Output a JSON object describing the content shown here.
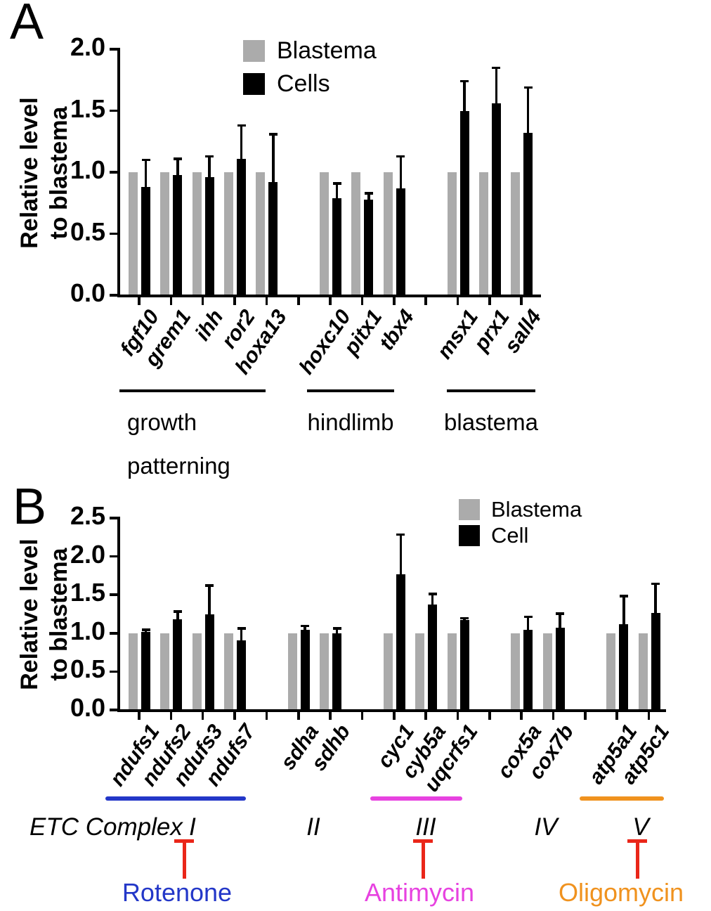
{
  "figure": {
    "background": "#ffffff",
    "bar_colors": {
      "blastema": "#ababab",
      "cells": "#000000"
    },
    "accent_colors": {
      "complex1_blue": "#2337c8",
      "complex3_magenta": "#e742e0",
      "complex5_orange": "#f0921e",
      "inhibition_red": "#ea2619"
    }
  },
  "chart_data": [
    {
      "type": "bar",
      "panel_label": "A",
      "ylabel": [
        "Relative level",
        "to blastema"
      ],
      "ylim": [
        0.0,
        2.0
      ],
      "ytick_labels": [
        "0.0",
        "0.5",
        "1.0",
        "1.5",
        "2.0"
      ],
      "grid": false,
      "legend_position": "top-center",
      "legend": [
        {
          "name": "Blastema",
          "color": "#ababab"
        },
        {
          "name": "Cells",
          "color": "#000000"
        }
      ],
      "categories": [
        "fgf10",
        "grem1",
        "ihh",
        "ror2",
        "hoxa13",
        "hoxc10",
        "pitx1",
        "tbx4",
        "msx1",
        "prx1",
        "sall4"
      ],
      "series": [
        {
          "name": "Blastema",
          "color": "#ababab",
          "values": [
            1.0,
            1.0,
            1.0,
            1.0,
            1.0,
            1.0,
            1.0,
            1.0,
            1.0,
            1.0,
            1.0
          ],
          "errors": [
            0,
            0,
            0,
            0,
            0,
            0,
            0,
            0,
            0,
            0,
            0
          ]
        },
        {
          "name": "Cells",
          "color": "#000000",
          "values": [
            0.88,
            0.98,
            0.96,
            1.11,
            0.92,
            0.79,
            0.78,
            0.87,
            1.5,
            1.56,
            1.32
          ],
          "errors": [
            0.23,
            0.14,
            0.18,
            0.28,
            0.4,
            0.13,
            0.06,
            0.27,
            0.25,
            0.3,
            0.38
          ]
        }
      ],
      "groups": [
        {
          "label": "growth patterning",
          "categories": [
            "fgf10",
            "grem1",
            "ihh",
            "ror2",
            "hoxa13"
          ]
        },
        {
          "label": "hindlimb",
          "categories": [
            "hoxc10",
            "pitx1",
            "tbx4"
          ]
        },
        {
          "label": "blastema",
          "categories": [
            "msx1",
            "prx1",
            "sall4"
          ]
        }
      ]
    },
    {
      "type": "bar",
      "panel_label": "B",
      "ylabel": [
        "Relative level",
        "to blastema"
      ],
      "ylim": [
        0.0,
        2.5
      ],
      "ytick_labels": [
        "0.0",
        "0.5",
        "1.0",
        "1.5",
        "2.0",
        "2.5"
      ],
      "grid": false,
      "legend_position": "top-right",
      "legend": [
        {
          "name": "Blastema",
          "color": "#ababab"
        },
        {
          "name": "Cell",
          "color": "#000000"
        }
      ],
      "categories": [
        "ndufs1",
        "ndufs2",
        "ndufs3",
        "ndufs7",
        "sdha",
        "sdhb",
        "cyc1",
        "cyb5a",
        "uqcrfs1",
        "cox5a",
        "cox7b",
        "atp5a1",
        "atp5c1"
      ],
      "series": [
        {
          "name": "Blastema",
          "color": "#ababab",
          "values": [
            1.0,
            1.0,
            1.0,
            1.0,
            1.0,
            1.0,
            1.0,
            1.0,
            1.0,
            1.0,
            1.0,
            1.0,
            1.0
          ],
          "errors": [
            0,
            0,
            0,
            0,
            0,
            0,
            0,
            0,
            0,
            0,
            0,
            0,
            0
          ]
        },
        {
          "name": "Cell",
          "color": "#000000",
          "values": [
            1.02,
            1.18,
            1.25,
            0.91,
            1.04,
            1.0,
            1.77,
            1.37,
            1.17,
            1.04,
            1.07,
            1.12,
            1.26
          ],
          "errors": [
            0.04,
            0.12,
            0.39,
            0.17,
            0.07,
            0.08,
            0.53,
            0.16,
            0.04,
            0.19,
            0.2,
            0.38,
            0.4
          ]
        }
      ],
      "group_axis_prefix": "ETC Complex",
      "groups": [
        {
          "label": "I",
          "categories": [
            "ndufs1",
            "ndufs2",
            "ndufs3",
            "ndufs7"
          ],
          "underline_color": "#2337c8",
          "inhibitor": {
            "name": "Rotenone",
            "color": "#2337c8"
          }
        },
        {
          "label": "II",
          "categories": [
            "sdha",
            "sdhb"
          ]
        },
        {
          "label": "III",
          "categories": [
            "cyc1",
            "cyb5a",
            "uqcrfs1"
          ],
          "underline_color": "#e742e0",
          "inhibitor": {
            "name": "Antimycin",
            "color": "#e742e0"
          }
        },
        {
          "label": "IV",
          "categories": [
            "cox5a",
            "cox7b"
          ]
        },
        {
          "label": "V",
          "categories": [
            "atp5a1",
            "atp5c1"
          ],
          "underline_color": "#f0921e",
          "inhibitor": {
            "name": "Oligomycin",
            "color": "#f0921e"
          }
        }
      ],
      "inhibition_symbol": {
        "color": "#ea2619"
      }
    }
  ]
}
